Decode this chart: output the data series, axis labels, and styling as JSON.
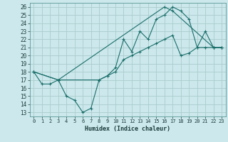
{
  "xlabel": "Humidex (Indice chaleur)",
  "background_color": "#cce8ec",
  "grid_color": "#aacccc",
  "line_color": "#1a6e6a",
  "xlim": [
    -0.5,
    23.5
  ],
  "ylim": [
    12.5,
    26.5
  ],
  "yticks": [
    13,
    14,
    15,
    16,
    17,
    18,
    19,
    20,
    21,
    22,
    23,
    24,
    25,
    26
  ],
  "xticks": [
    0,
    1,
    2,
    3,
    4,
    5,
    6,
    7,
    8,
    9,
    10,
    11,
    12,
    13,
    14,
    15,
    16,
    17,
    18,
    19,
    20,
    21,
    22,
    23
  ],
  "line1_x": [
    0,
    1,
    2,
    3,
    4,
    5,
    6,
    7,
    8,
    9,
    10,
    11,
    12,
    13,
    14,
    15,
    16,
    17,
    18,
    19,
    20,
    21,
    22,
    23
  ],
  "line1_y": [
    18,
    16.5,
    16.5,
    17,
    15,
    14.5,
    13,
    13.5,
    17,
    17.5,
    18.5,
    22,
    20.5,
    23,
    22,
    24.5,
    25,
    26,
    25.5,
    24.5,
    21,
    23,
    21,
    21
  ],
  "line2_x": [
    0,
    3,
    16,
    17,
    22,
    23
  ],
  "line2_y": [
    18,
    17,
    26,
    25.5,
    21,
    21
  ],
  "line3_x": [
    0,
    3,
    8,
    9,
    10,
    11,
    12,
    13,
    14,
    15,
    16,
    17,
    18,
    19,
    20,
    21,
    22,
    23
  ],
  "line3_y": [
    18,
    17,
    17,
    17.5,
    18,
    19.5,
    20,
    20.5,
    21,
    21.5,
    22,
    22.5,
    20,
    20.3,
    21,
    21,
    21,
    21
  ]
}
